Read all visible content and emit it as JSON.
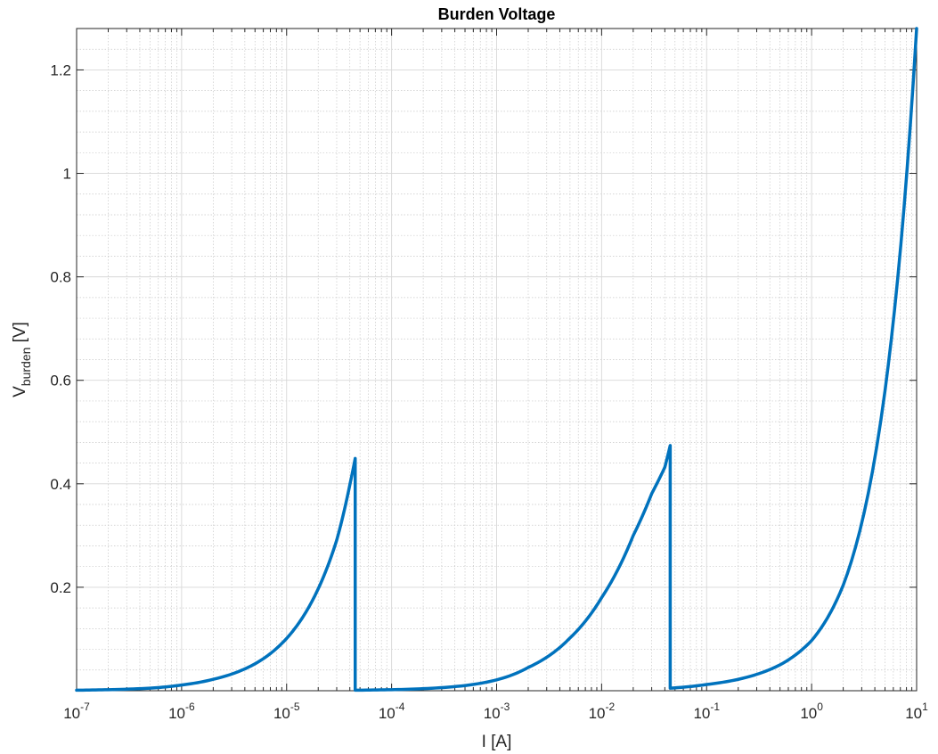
{
  "chart_data": {
    "type": "line",
    "title": "Burden Voltage",
    "xlabel": "I [A]",
    "ylabel": {
      "main": "V",
      "sub": "burden",
      "unit": " [V]"
    },
    "xscale": "log",
    "xlim": [
      1e-07,
      10
    ],
    "ylim": [
      0,
      1.28
    ],
    "x_ticks": [
      {
        "base": "10",
        "exp": "-7",
        "value": 1e-07
      },
      {
        "base": "10",
        "exp": "-6",
        "value": 1e-06
      },
      {
        "base": "10",
        "exp": "-5",
        "value": 1e-05
      },
      {
        "base": "10",
        "exp": "-4",
        "value": 0.0001
      },
      {
        "base": "10",
        "exp": "-3",
        "value": 0.001
      },
      {
        "base": "10",
        "exp": "-2",
        "value": 0.01
      },
      {
        "base": "10",
        "exp": "-1",
        "value": 0.1
      },
      {
        "base": "10",
        "exp": "0",
        "value": 1
      },
      {
        "base": "10",
        "exp": "1",
        "value": 10
      }
    ],
    "y_ticks": [
      {
        "label": "0.2",
        "value": 0.2
      },
      {
        "label": "0.4",
        "value": 0.4
      },
      {
        "label": "0.6",
        "value": 0.6
      },
      {
        "label": "0.8",
        "value": 0.8
      },
      {
        "label": "1",
        "value": 1.0
      },
      {
        "label": "1.2",
        "value": 1.2
      }
    ],
    "grid": "major and minor",
    "series": [
      {
        "color": "#0072BD",
        "x": [
          1e-07,
          2e-07,
          5e-07,
          1e-06,
          2e-06,
          5e-06,
          1e-05,
          2e-05,
          3e-05,
          4e-05,
          4.5e-05,
          4.5e-05,
          0.0001,
          0.0002,
          0.0005,
          0.001,
          0.002,
          0.005,
          0.01,
          0.02,
          0.03,
          0.04,
          0.045,
          0.045,
          0.1,
          0.2,
          0.5,
          1,
          2,
          5,
          10
        ],
        "y": [
          0.001,
          0.002,
          0.005,
          0.011,
          0.022,
          0.052,
          0.101,
          0.197,
          0.291,
          0.398,
          0.449,
          0.001,
          0.002,
          0.004,
          0.01,
          0.021,
          0.045,
          0.102,
          0.18,
          0.3,
          0.381,
          0.432,
          0.474,
          0.005,
          0.012,
          0.022,
          0.05,
          0.097,
          0.204,
          0.58,
          1.28
        ]
      }
    ]
  }
}
